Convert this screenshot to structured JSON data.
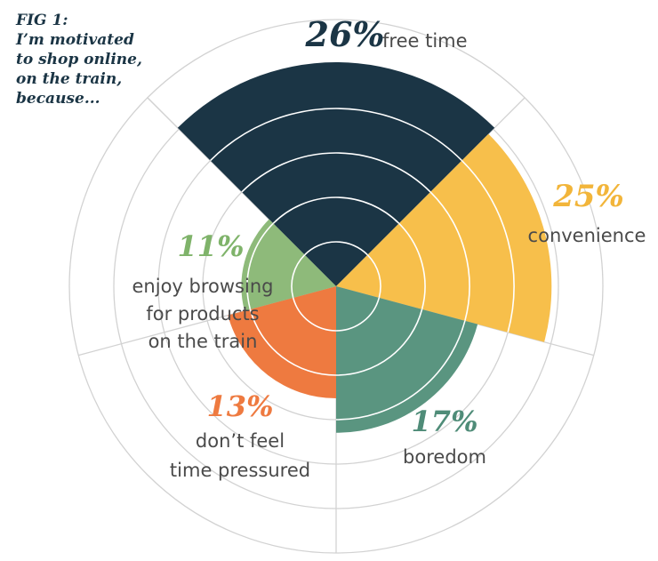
{
  "figure": {
    "title_lines": [
      "FIG 1:",
      "I’m motivated",
      "to shop online,",
      "on the train,",
      "because..."
    ]
  },
  "chart_data": {
    "type": "polar-area",
    "unit": "%",
    "rings": 6,
    "max_value": 26,
    "grid": true,
    "colors": {
      "grid": "#d2d2d2",
      "ring_on_segment": "#ffffff"
    },
    "segments": [
      {
        "key": "free_time",
        "value": 26,
        "value_label": "26%",
        "label_lines": [
          "free time"
        ],
        "color": "#1b3545",
        "pct_color": "#1b3545"
      },
      {
        "key": "convenience",
        "value": 25,
        "value_label": "25%",
        "label_lines": [
          "convenience"
        ],
        "color": "#f7bf4b",
        "pct_color": "#f2b53a"
      },
      {
        "key": "boredom",
        "value": 17,
        "value_label": "17%",
        "label_lines": [
          "boredom"
        ],
        "color": "#5a9580",
        "pct_color": "#4f8c78"
      },
      {
        "key": "time_pressured",
        "value": 13,
        "value_label": "13%",
        "label_lines": [
          "don’t feel",
          "time pressured"
        ],
        "color": "#ee7a40",
        "pct_color": "#ee7a40"
      },
      {
        "key": "browsing",
        "value": 11,
        "value_label": "11%",
        "label_lines": [
          "enjoy browsing",
          "for products",
          "on the train"
        ],
        "color": "#8eba7a",
        "pct_color": "#7fb36a"
      }
    ]
  }
}
